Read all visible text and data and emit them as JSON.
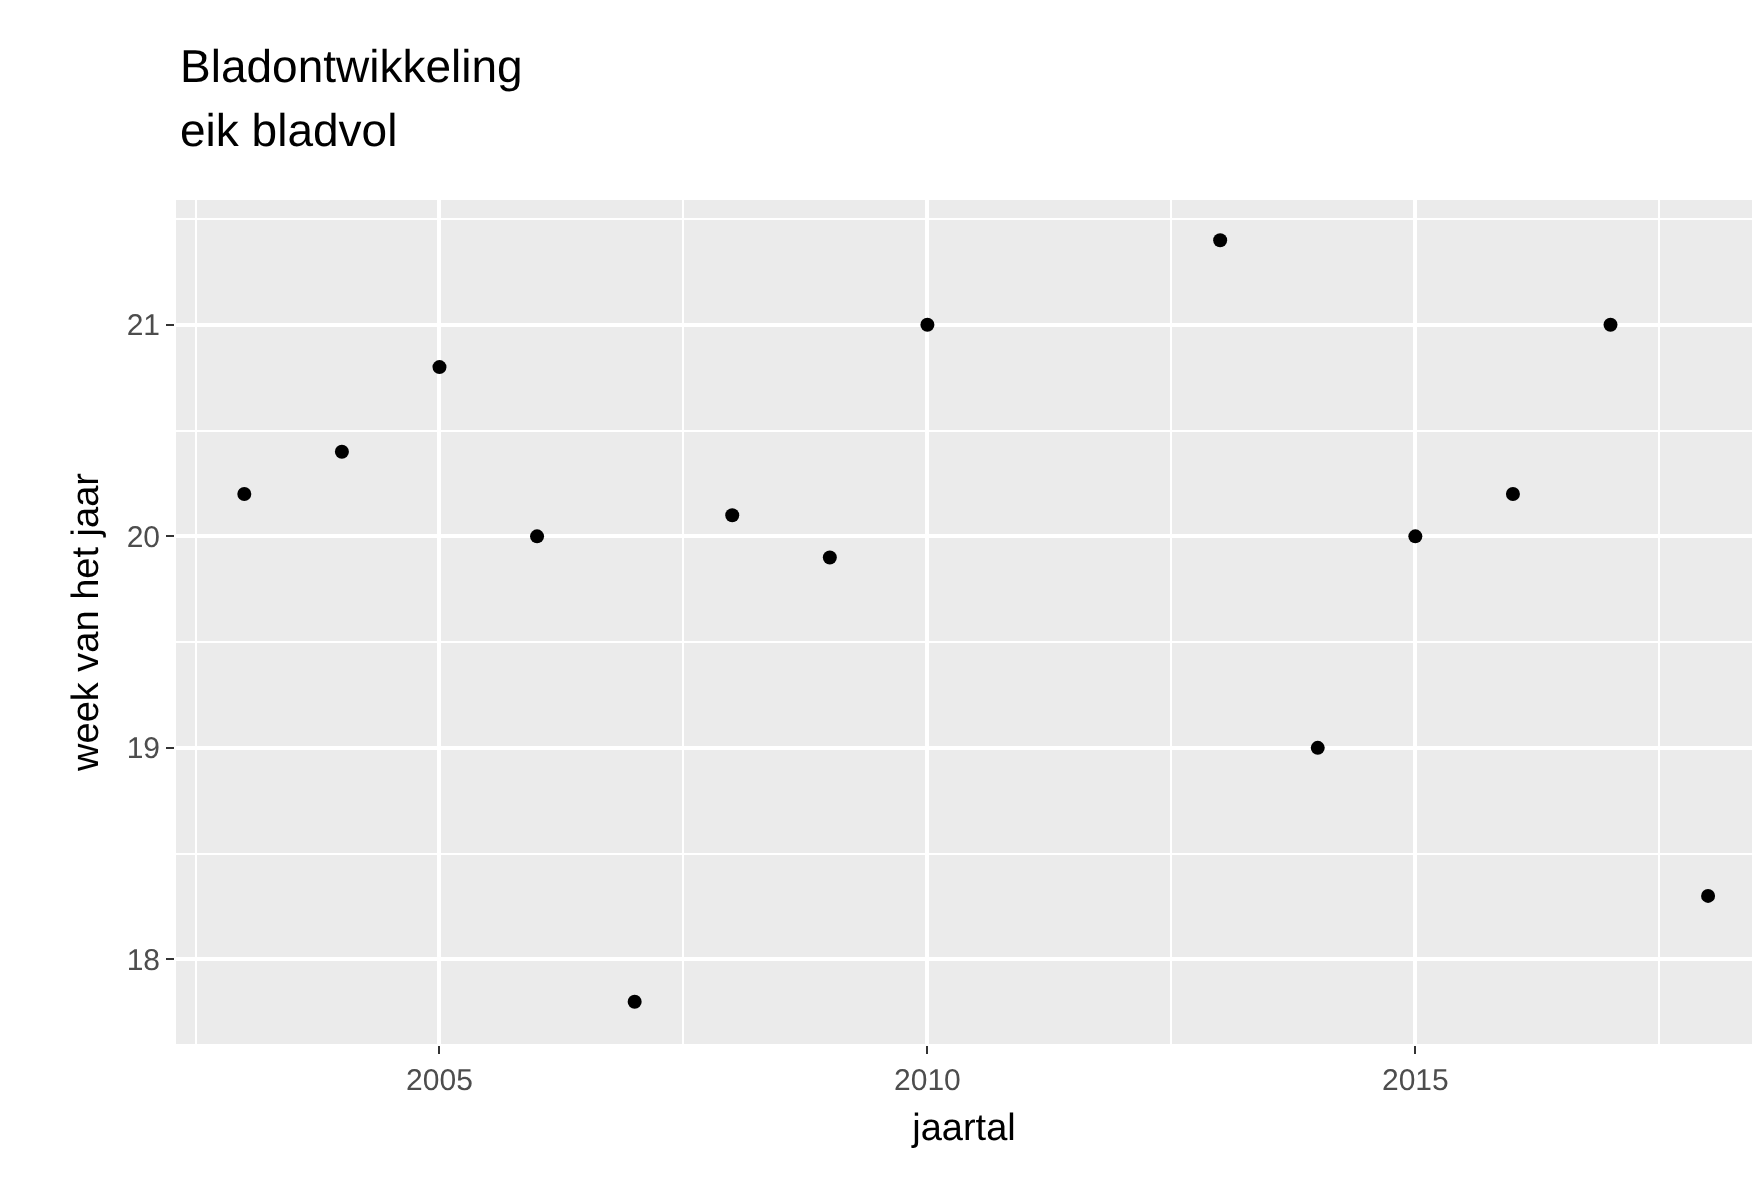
{
  "chart_data": {
    "type": "scatter",
    "title": "Bladontwikkeling",
    "subtitle": "eik bladvol",
    "xlabel": "jaartal",
    "ylabel": "week van het jaar",
    "x": [
      2003,
      2004,
      2005,
      2006,
      2007,
      2008,
      2009,
      2010,
      2013,
      2014,
      2015,
      2016,
      2017,
      2018
    ],
    "values": [
      20.2,
      20.4,
      20.8,
      20.0,
      17.8,
      20.1,
      19.9,
      21.0,
      21.4,
      19.0,
      20.0,
      20.2,
      21.0,
      18.3
    ],
    "color": "#000000",
    "marker": "circle",
    "xlim": [
      2002.3,
      2018.45
    ],
    "xticks": [
      2005,
      2010,
      2015
    ],
    "ylim": [
      17.6,
      21.59
    ],
    "yticks": [
      18,
      19,
      20,
      21
    ],
    "grid": true
  }
}
